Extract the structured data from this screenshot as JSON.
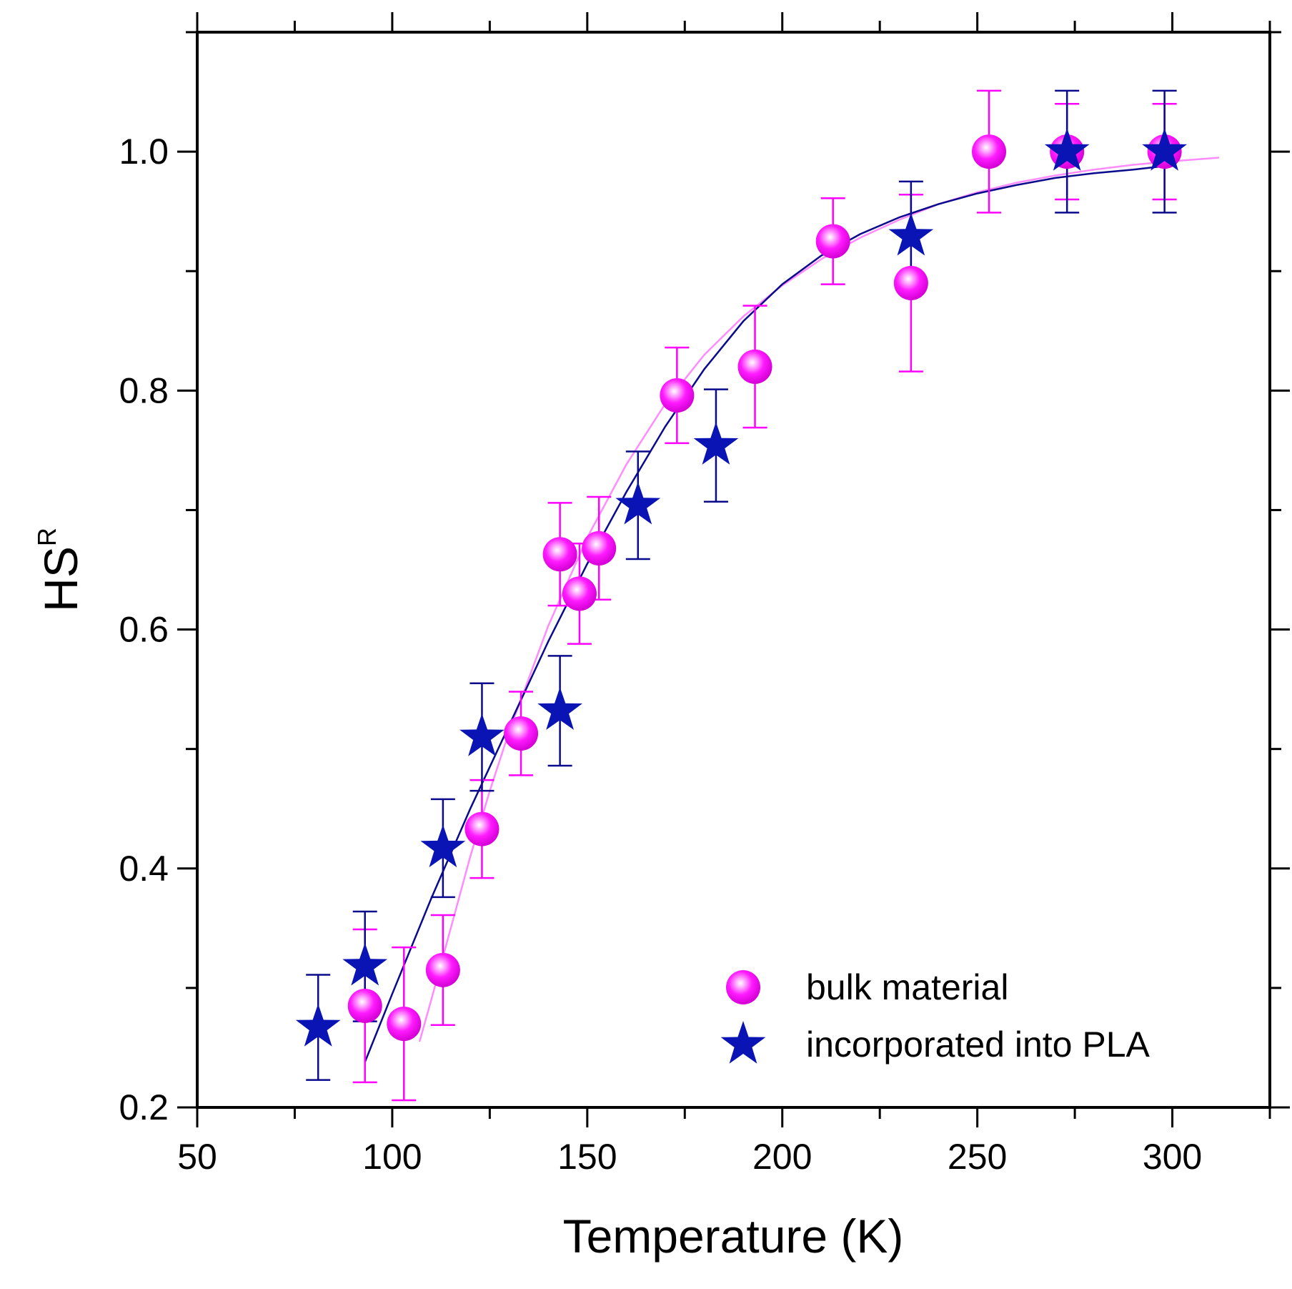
{
  "chart_data": {
    "type": "scatter",
    "title": "",
    "xlabel": "Temperature (K)",
    "ylabel_main": "HS",
    "ylabel_sup": "R",
    "xlim": [
      50,
      325
    ],
    "ylim": [
      0.2,
      1.1
    ],
    "xticks": [
      50,
      100,
      150,
      200,
      250,
      300
    ],
    "xtick_labels": [
      "50",
      "100",
      "150",
      "200",
      "250",
      "300"
    ],
    "yticks": [
      0.2,
      0.4,
      0.6,
      0.8,
      1.0
    ],
    "ytick_labels": [
      "0.2",
      "0.4",
      "0.6",
      "0.8",
      "1.0"
    ],
    "legend_position": "bottom-right",
    "series": [
      {
        "name": "bulk material",
        "marker": "sphere",
        "color": "#ff00ff",
        "points": [
          {
            "x": 93,
            "y": 0.285,
            "err": 0.064
          },
          {
            "x": 103,
            "y": 0.27,
            "err": 0.064
          },
          {
            "x": 113,
            "y": 0.315,
            "err": 0.046
          },
          {
            "x": 123,
            "y": 0.433,
            "err": 0.041
          },
          {
            "x": 133,
            "y": 0.513,
            "err": 0.035
          },
          {
            "x": 143,
            "y": 0.663,
            "err": 0.043
          },
          {
            "x": 148,
            "y": 0.63,
            "err": 0.042
          },
          {
            "x": 153,
            "y": 0.668,
            "err": 0.043
          },
          {
            "x": 173,
            "y": 0.796,
            "err": 0.04
          },
          {
            "x": 193,
            "y": 0.82,
            "err": 0.051
          },
          {
            "x": 213,
            "y": 0.925,
            "err": 0.036
          },
          {
            "x": 233,
            "y": 0.89,
            "err": 0.074
          },
          {
            "x": 253,
            "y": 1.0,
            "err": 0.051
          },
          {
            "x": 273,
            "y": 1.0,
            "err": 0.04
          },
          {
            "x": 298,
            "y": 1.0,
            "err": 0.04
          }
        ],
        "fit": [
          [
            107,
            0.255
          ],
          [
            110,
            0.29
          ],
          [
            115,
            0.35
          ],
          [
            120,
            0.41
          ],
          [
            125,
            0.465
          ],
          [
            130,
            0.515
          ],
          [
            140,
            0.603
          ],
          [
            150,
            0.677
          ],
          [
            160,
            0.738
          ],
          [
            170,
            0.789
          ],
          [
            180,
            0.83
          ],
          [
            190,
            0.862
          ],
          [
            200,
            0.888
          ],
          [
            210,
            0.91
          ],
          [
            220,
            0.928
          ],
          [
            230,
            0.943
          ],
          [
            240,
            0.956
          ],
          [
            250,
            0.966
          ],
          [
            260,
            0.974
          ],
          [
            270,
            0.98
          ],
          [
            280,
            0.985
          ],
          [
            290,
            0.989
          ],
          [
            300,
            0.992
          ],
          [
            312,
            0.995
          ]
        ]
      },
      {
        "name": "incorporated into PLA",
        "marker": "star",
        "color": "#0a14b4",
        "points": [
          {
            "x": 81,
            "y": 0.267,
            "err": 0.044
          },
          {
            "x": 93,
            "y": 0.318,
            "err": 0.046
          },
          {
            "x": 113,
            "y": 0.417,
            "err": 0.041
          },
          {
            "x": 123,
            "y": 0.51,
            "err": 0.045
          },
          {
            "x": 143,
            "y": 0.532,
            "err": 0.046
          },
          {
            "x": 163,
            "y": 0.704,
            "err": 0.045
          },
          {
            "x": 183,
            "y": 0.754,
            "err": 0.047
          },
          {
            "x": 233,
            "y": 0.929,
            "err": 0.046
          },
          {
            "x": 273,
            "y": 1.0,
            "err": 0.051
          },
          {
            "x": 298,
            "y": 1.0,
            "err": 0.051
          }
        ],
        "fit": [
          [
            93,
            0.238
          ],
          [
            100,
            0.295
          ],
          [
            110,
            0.375
          ],
          [
            120,
            0.45
          ],
          [
            130,
            0.52
          ],
          [
            140,
            0.59
          ],
          [
            150,
            0.655
          ],
          [
            160,
            0.715
          ],
          [
            170,
            0.77
          ],
          [
            180,
            0.818
          ],
          [
            190,
            0.858
          ],
          [
            200,
            0.889
          ],
          [
            210,
            0.913
          ],
          [
            220,
            0.931
          ],
          [
            230,
            0.945
          ],
          [
            240,
            0.956
          ],
          [
            250,
            0.965
          ],
          [
            260,
            0.972
          ],
          [
            270,
            0.978
          ],
          [
            280,
            0.982
          ],
          [
            290,
            0.985
          ],
          [
            298,
            0.988
          ]
        ]
      }
    ]
  }
}
